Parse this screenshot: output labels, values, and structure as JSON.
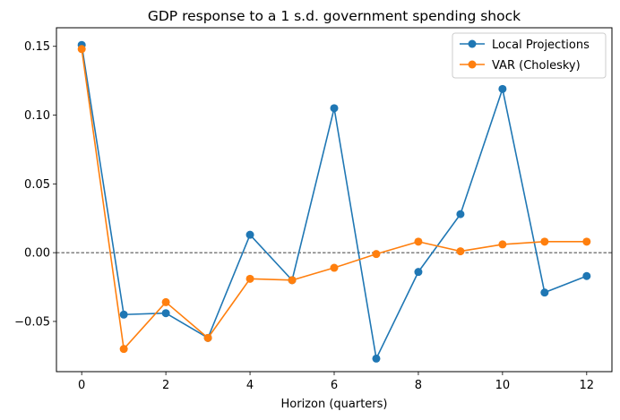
{
  "chart_data": {
    "type": "line",
    "title": "GDP response to a 1 s.d. government spending shock",
    "xlabel": "Horizon (quarters)",
    "ylabel": "",
    "x": [
      0,
      1,
      2,
      3,
      4,
      5,
      6,
      7,
      8,
      9,
      10,
      11,
      12
    ],
    "xlim": [
      -0.6,
      12.6
    ],
    "ylim": [
      -0.0865,
      0.1635
    ],
    "xticks": [
      0,
      2,
      4,
      6,
      8,
      10,
      12
    ],
    "yticks": [
      -0.05,
      0.0,
      0.05,
      0.1,
      0.15
    ],
    "ytick_labels": [
      "−0.05",
      "0.00",
      "0.05",
      "0.10",
      "0.15"
    ],
    "xtick_labels": [
      "0",
      "2",
      "4",
      "6",
      "8",
      "10",
      "12"
    ],
    "zero_line": {
      "y": 0,
      "style": "dashed",
      "color": "#000000"
    },
    "grid": false,
    "legend_position": "top-right",
    "series": [
      {
        "name": "Local Projections",
        "color": "#1f77b4",
        "marker": "circle",
        "values": [
          0.151,
          -0.045,
          -0.044,
          -0.062,
          0.013,
          -0.02,
          0.105,
          -0.077,
          -0.014,
          0.028,
          0.119,
          -0.029,
          -0.017
        ]
      },
      {
        "name": "VAR (Cholesky)",
        "color": "#ff7f0e",
        "marker": "circle",
        "values": [
          0.148,
          -0.07,
          -0.036,
          -0.062,
          -0.019,
          -0.02,
          -0.011,
          -0.001,
          0.008,
          0.001,
          0.006,
          0.008,
          0.008
        ]
      }
    ]
  }
}
